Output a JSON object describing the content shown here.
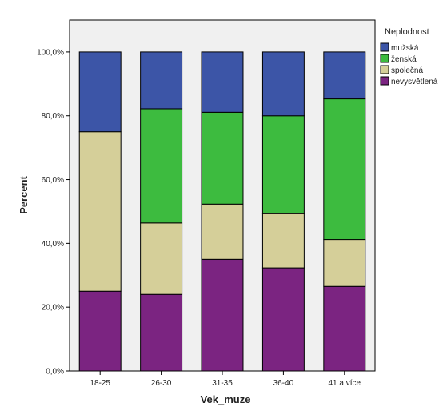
{
  "chart_data": {
    "type": "bar",
    "stacked": true,
    "categories": [
      "18-25",
      "26-30",
      "31-35",
      "36-40",
      "41 a více"
    ],
    "series": [
      {
        "name": "nevysvětlená",
        "color": "#7b2481",
        "values": [
          25.0,
          24.0,
          35.0,
          32.3,
          26.5
        ]
      },
      {
        "name": "společná",
        "color": "#d5cf99",
        "values": [
          50.0,
          22.4,
          17.3,
          17.0,
          14.7
        ]
      },
      {
        "name": "ženská",
        "color": "#3dbb3f",
        "values": [
          0.0,
          35.8,
          28.8,
          30.7,
          44.1
        ]
      },
      {
        "name": "mužská",
        "color": "#3c55a7",
        "values": [
          25.0,
          17.8,
          18.9,
          20.0,
          14.7
        ]
      }
    ],
    "legend_title": "Neplodnost",
    "legend_order": [
      "mužská",
      "ženská",
      "společná",
      "nevysvětlená"
    ],
    "legend_position": "top-right",
    "xlabel": "Vek_muze",
    "ylabel": "Percent",
    "ylim": [
      0,
      110
    ],
    "yticks": [
      0,
      20,
      40,
      60,
      80,
      100
    ],
    "ytick_labels": [
      "0,0%",
      "20,0%",
      "40,0%",
      "60,0%",
      "80,0%",
      "100,0%"
    ],
    "plot_background": "#f0f0f0",
    "grid": false
  }
}
